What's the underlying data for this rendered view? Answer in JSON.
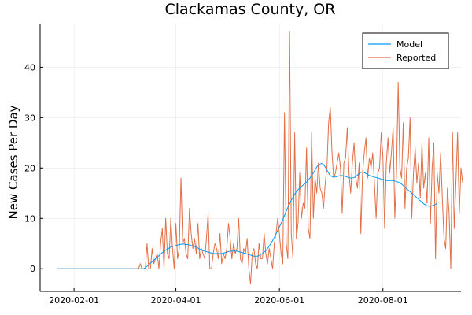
{
  "chart_data": {
    "type": "line",
    "title": "Clackamas County, OR",
    "xlabel": "",
    "ylabel": "New Cases Per Day",
    "x_start": "2020-01-22",
    "x_end": "2020-09-10",
    "xlim": [
      "2020-01-12",
      "2020-09-16"
    ],
    "ylim": [
      -4.5,
      48.5
    ],
    "x_ticks": [
      "2020-02-01",
      "2020-04-01",
      "2020-06-01",
      "2020-08-01"
    ],
    "y_ticks": [
      0,
      10,
      20,
      30,
      40
    ],
    "grid": true,
    "legend_position": "top-right",
    "series": [
      {
        "name": "Model",
        "color": "#009AFA",
        "values": [
          0,
          0,
          0,
          0,
          0,
          0,
          0,
          0,
          0,
          0,
          0,
          0,
          0,
          0,
          0,
          0,
          0,
          0,
          0,
          0,
          0,
          0,
          0,
          0,
          0,
          0,
          0,
          0,
          0,
          0,
          0,
          0,
          0,
          0,
          0,
          0,
          0,
          0,
          0,
          0,
          0,
          0,
          0,
          0,
          0,
          0,
          0,
          0,
          0,
          0,
          0,
          0,
          0.2,
          0.5,
          0.8,
          1.1,
          1.4,
          1.7,
          2.0,
          2.3,
          2.6,
          2.9,
          3.2,
          3.5,
          3.7,
          3.9,
          4.1,
          4.3,
          4.4,
          4.5,
          4.6,
          4.7,
          4.8,
          4.85,
          4.9,
          4.9,
          4.8,
          4.8,
          4.7,
          4.6,
          4.5,
          4.4,
          4.3,
          4.1,
          3.9,
          3.8,
          3.6,
          3.5,
          3.4,
          3.3,
          3.2,
          3.1,
          3.0,
          3.0,
          3.0,
          3.0,
          3.0,
          3.0,
          3.1,
          3.2,
          3.3,
          3.4,
          3.5,
          3.5,
          3.5,
          3.5,
          3.5,
          3.4,
          3.3,
          3.2,
          3.1,
          3.0,
          2.9,
          2.8,
          2.7,
          2.6,
          2.5,
          2.5,
          2.5,
          2.6,
          2.8,
          3.0,
          3.3,
          3.6,
          4.0,
          4.5,
          5.0,
          5.6,
          6.2,
          6.9,
          7.6,
          8.3,
          9.0,
          9.8,
          10.6,
          11.4,
          12.2,
          12.9,
          13.6,
          14.2,
          14.8,
          15.3,
          15.7,
          16.0,
          16.3,
          16.6,
          16.9,
          17.2,
          17.6,
          18.0,
          18.5,
          19.0,
          19.6,
          20.2,
          20.6,
          20.8,
          20.9,
          20.7,
          20.2,
          19.6,
          19.0,
          18.5,
          18.3,
          18.2,
          18.2,
          18.3,
          18.4,
          18.5,
          18.5,
          18.4,
          18.3,
          18.2,
          18.1,
          18.0,
          18.0,
          18.1,
          18.3,
          18.6,
          18.9,
          19.1,
          19.2,
          19.1,
          18.9,
          18.7,
          18.5,
          18.4,
          18.3,
          18.2,
          18.1,
          18.0,
          17.9,
          17.8,
          17.7,
          17.6,
          17.5,
          17.5,
          17.5,
          17.5,
          17.5,
          17.4,
          17.3,
          17.2,
          17.0,
          16.8,
          16.5,
          16.2,
          15.9,
          15.6,
          15.3,
          15.0,
          14.7,
          14.4,
          14.1,
          13.8,
          13.5,
          13.2,
          12.9,
          12.7,
          12.5,
          12.4,
          12.4,
          12.5,
          12.6,
          12.8,
          13.0
        ]
      },
      {
        "name": "Reported",
        "color": "#E26F46",
        "values": [
          0,
          0,
          0,
          0,
          0,
          0,
          0,
          0,
          0,
          0,
          0,
          0,
          0,
          0,
          0,
          0,
          0,
          0,
          0,
          0,
          0,
          0,
          0,
          0,
          0,
          0,
          0,
          0,
          0,
          0,
          0,
          0,
          0,
          0,
          0,
          0,
          0,
          0,
          0,
          0,
          0,
          0,
          0,
          0,
          0,
          0,
          0,
          0,
          0,
          1,
          0,
          0,
          0,
          5,
          0,
          0,
          4,
          1,
          2,
          3,
          0,
          5,
          8,
          0,
          10,
          3,
          2,
          10,
          4,
          0,
          9,
          2,
          4,
          18,
          5,
          6,
          3,
          2,
          12,
          7,
          4,
          6,
          3,
          9,
          2,
          4,
          3,
          2,
          6,
          11,
          0,
          0,
          3,
          5,
          4,
          2,
          7,
          1,
          3,
          2,
          4,
          9,
          6,
          2,
          5,
          3,
          4,
          10,
          2,
          1,
          4,
          3,
          6,
          0,
          -3,
          3,
          4,
          1,
          0,
          5,
          2,
          2,
          7,
          3,
          1,
          4,
          2,
          0,
          5,
          7,
          10,
          7,
          3,
          1,
          31,
          5,
          2,
          47,
          7,
          2,
          27,
          6,
          9,
          19,
          10,
          13,
          12,
          24,
          8,
          6,
          27,
          10,
          18,
          15,
          21,
          16,
          15,
          12,
          17,
          20,
          29,
          32,
          23,
          18,
          19,
          21,
          23,
          20,
          11,
          21,
          22,
          28,
          19,
          15,
          21,
          25,
          18,
          16,
          21,
          7,
          19,
          23,
          26,
          18,
          22,
          20,
          23,
          17,
          10,
          19,
          20,
          27,
          22,
          8,
          21,
          26,
          19,
          23,
          28,
          10,
          19,
          37,
          20,
          18,
          29,
          12,
          20,
          22,
          30,
          10,
          19,
          24,
          17,
          21,
          14,
          25,
          16,
          19,
          13,
          26,
          9,
          20,
          25,
          2,
          19,
          15,
          23,
          14,
          6,
          4,
          16,
          11,
          0,
          27,
          8,
          17,
          27,
          11,
          20,
          17
        ]
      }
    ]
  }
}
